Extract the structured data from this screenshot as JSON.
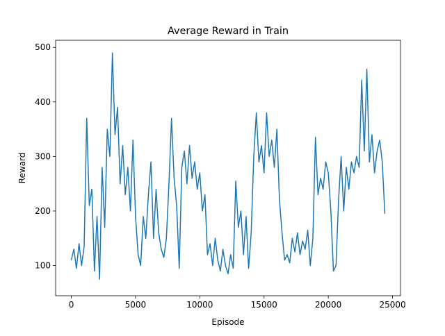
{
  "chart_data": {
    "type": "line",
    "title": "Average Reward in Train",
    "x_label": "Episode",
    "y_label": "Reward",
    "xlim": [
      -1220,
      25620
    ],
    "ylim": [
      44.7,
      513
    ],
    "xticks": [
      0,
      5000,
      10000,
      15000,
      20000,
      25000
    ],
    "yticks": [
      100,
      200,
      300,
      400,
      500
    ],
    "series": [
      {
        "name": "Average Reward",
        "color": "#1f77b4",
        "x": [
          0,
          200,
          400,
          600,
          800,
          1000,
          1200,
          1400,
          1600,
          1800,
          2000,
          2200,
          2400,
          2600,
          2800,
          3000,
          3200,
          3400,
          3600,
          3800,
          4000,
          4200,
          4400,
          4600,
          4800,
          5000,
          5200,
          5400,
          5600,
          5800,
          6000,
          6200,
          6400,
          6600,
          6800,
          7000,
          7200,
          7400,
          7600,
          7800,
          8000,
          8200,
          8400,
          8600,
          8800,
          9000,
          9200,
          9400,
          9600,
          9800,
          10000,
          10200,
          10400,
          10600,
          10800,
          11000,
          11200,
          11400,
          11600,
          11800,
          12000,
          12200,
          12400,
          12600,
          12800,
          13000,
          13200,
          13400,
          13600,
          13800,
          14000,
          14200,
          14400,
          14600,
          14800,
          15000,
          15200,
          15400,
          15600,
          15800,
          16000,
          16200,
          16400,
          16600,
          16800,
          17000,
          17200,
          17400,
          17600,
          17800,
          18000,
          18200,
          18400,
          18600,
          18800,
          19000,
          19200,
          19400,
          19600,
          19800,
          20000,
          20200,
          20400,
          20600,
          20800,
          21000,
          21200,
          21400,
          21600,
          21800,
          22000,
          22200,
          22400,
          22600,
          22800,
          23000,
          23200,
          23400,
          23600,
          23800,
          24000,
          24200,
          24400
        ],
        "values": [
          110,
          130,
          95,
          140,
          100,
          135,
          370,
          210,
          240,
          90,
          190,
          75,
          280,
          170,
          350,
          300,
          490,
          340,
          390,
          250,
          320,
          230,
          280,
          200,
          330,
          190,
          120,
          100,
          190,
          150,
          230,
          290,
          150,
          240,
          160,
          130,
          115,
          150,
          250,
          370,
          260,
          210,
          95,
          280,
          310,
          250,
          320,
          260,
          290,
          240,
          270,
          200,
          230,
          120,
          140,
          100,
          150,
          110,
          90,
          130,
          100,
          85,
          120,
          95,
          255,
          170,
          200,
          120,
          190,
          95,
          160,
          300,
          380,
          290,
          320,
          270,
          380,
          300,
          330,
          280,
          350,
          220,
          160,
          110,
          120,
          105,
          150,
          125,
          160,
          120,
          145,
          130,
          165,
          100,
          150,
          335,
          230,
          260,
          240,
          290,
          270,
          200,
          90,
          100,
          220,
          300,
          200,
          280,
          240,
          290,
          270,
          300,
          280,
          440,
          310,
          460,
          290,
          340,
          270,
          310,
          330,
          290,
          195
        ]
      }
    ]
  }
}
